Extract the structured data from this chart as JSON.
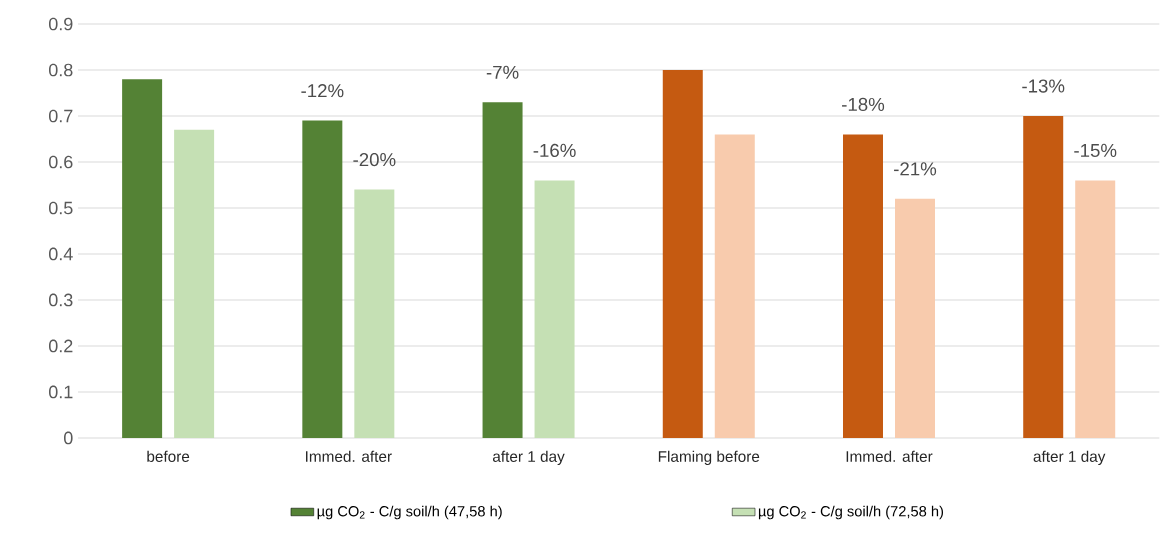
{
  "chart_data": {
    "type": "bar",
    "categories": [
      "before",
      "Immed. after",
      "after 1 day",
      "Flaming before",
      "Immed. after",
      "after 1 day"
    ],
    "series": [
      {
        "name": "µg CO$_{2}$ - C/g soil/h  (47,58 h)",
        "color": "#548235",
        "colors": [
          "#548235",
          "#548235",
          "#548235",
          "#c55a11",
          "#c55a11",
          "#c55a11"
        ],
        "values": [
          0.78,
          0.69,
          0.73,
          0.8,
          0.66,
          0.7
        ]
      },
      {
        "name": "µg CO$_{2}$ - C/g soil/h  (72,58 h)",
        "color": "#c5e0b4",
        "colors": [
          "#c5e0b4",
          "#c5e0b4",
          "#c5e0b4",
          "#f8cbad",
          "#f8cbad",
          "#f8cbad"
        ],
        "values": [
          0.67,
          0.54,
          0.56,
          0.66,
          0.52,
          0.56
        ]
      }
    ],
    "annotations": [
      "-12%",
      "-20%",
      "-7%",
      "-16%",
      "-18%",
      "-21%",
      "-13%",
      "-15%"
    ],
    "ylim": [
      0,
      0.9
    ],
    "yticks": [
      0,
      0.1,
      0.2,
      0.3,
      0.4,
      0.5,
      0.6,
      0.7,
      0.8,
      0.9
    ],
    "grid": "y",
    "legend": "bottom"
  }
}
